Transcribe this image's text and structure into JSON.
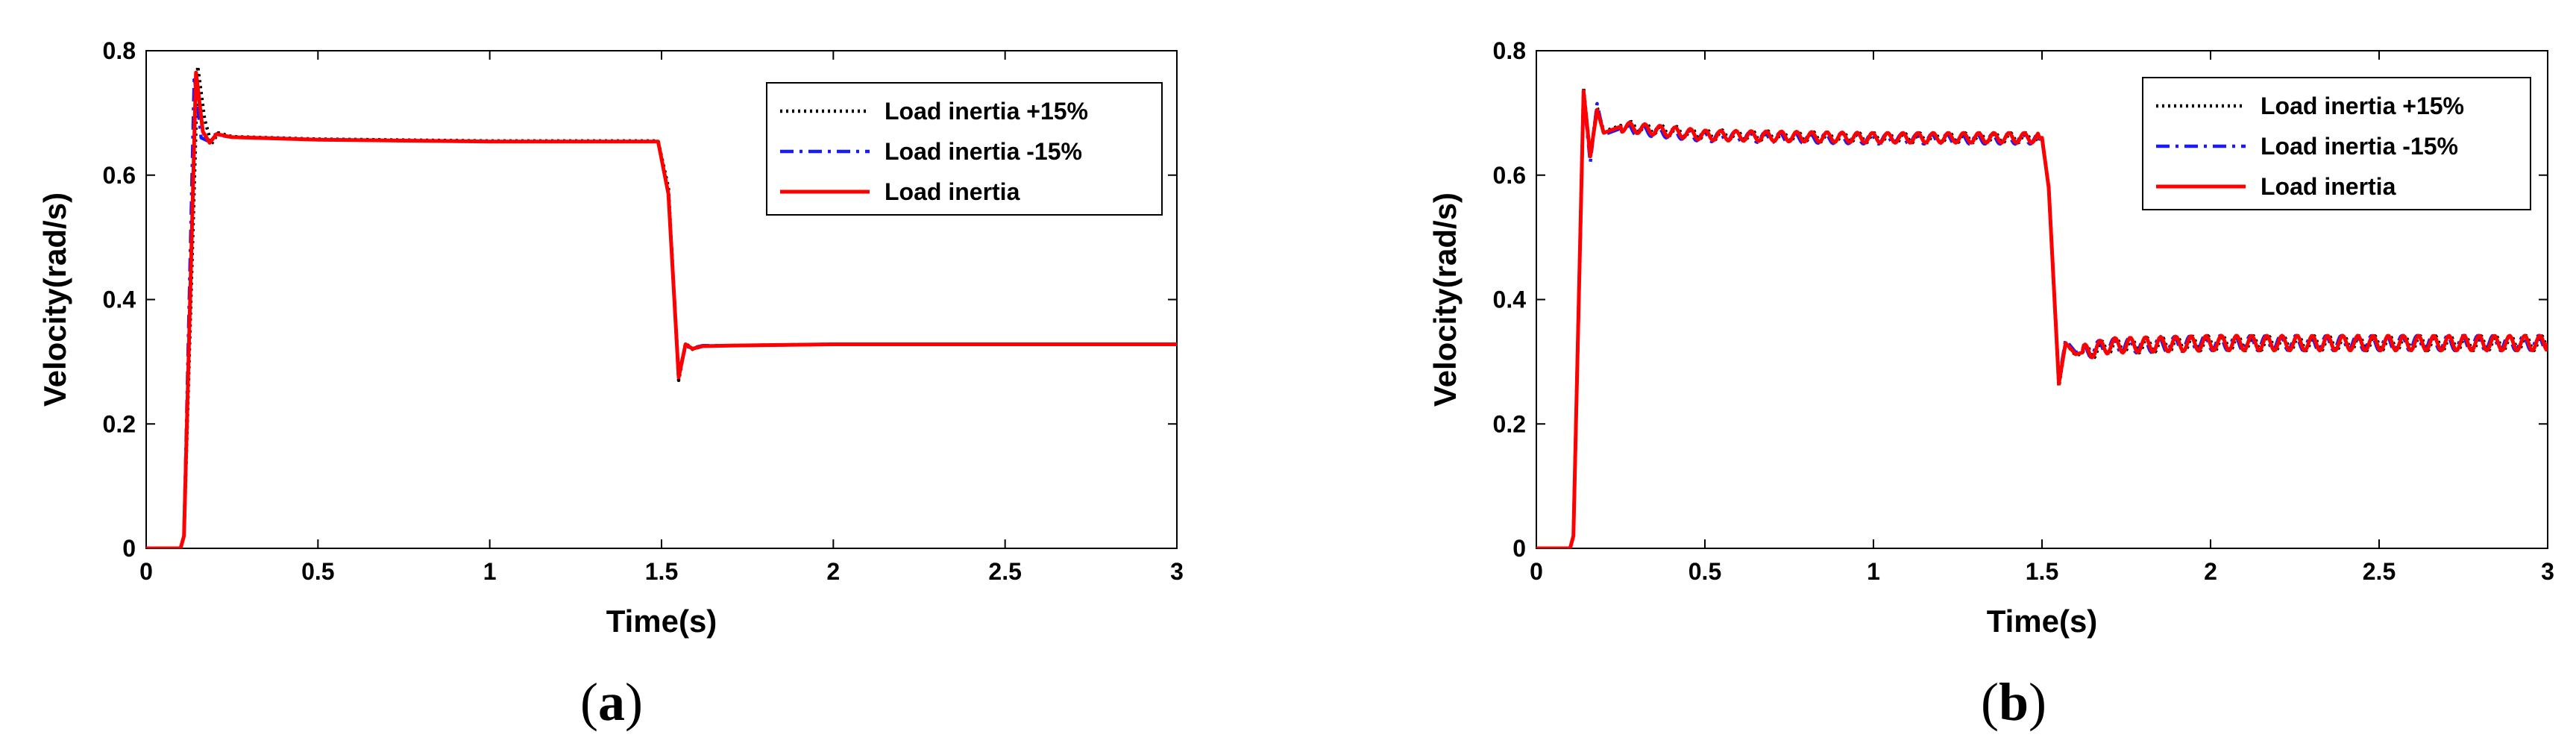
{
  "chart_data": [
    {
      "type": "line",
      "panel_label": "a",
      "xlabel": "Time(s)",
      "ylabel": "Velocity(rad/s)",
      "xlim": [
        0,
        3
      ],
      "ylim": [
        0,
        0.8
      ],
      "xticks": [
        "0",
        "0.5",
        "1",
        "1.5",
        "2",
        "2.5",
        "3"
      ],
      "yticks": [
        "0",
        "0.2",
        "0.4",
        "0.6",
        "0.8"
      ],
      "grid": false,
      "legend_position": "top-right",
      "colors": {
        "load_plus": "#000000",
        "load_minus": "#1a1aff",
        "load": "#ff0000"
      },
      "series": [
        {
          "name": "Load inertia +15%",
          "style": "dotted",
          "color": "#000000",
          "x": [
            0,
            0.1,
            0.11,
            0.15,
            0.17,
            0.19,
            0.21,
            0.25,
            0.5,
            1.0,
            1.49,
            1.52,
            1.55,
            1.57,
            1.59,
            1.62,
            1.7,
            2.0,
            3.0
          ],
          "y": [
            0,
            0,
            0.02,
            0.775,
            0.69,
            0.65,
            0.668,
            0.662,
            0.658,
            0.655,
            0.655,
            0.58,
            0.27,
            0.33,
            0.32,
            0.325,
            0.326,
            0.328,
            0.328
          ]
        },
        {
          "name": "Load inertia -15%",
          "style": "dashdot",
          "color": "#1a1aff",
          "x": [
            0,
            0.1,
            0.11,
            0.14,
            0.16,
            0.18,
            0.2,
            0.25,
            0.5,
            1.0,
            1.49,
            1.52,
            1.55,
            1.57,
            1.59,
            1.62,
            1.7,
            2.0,
            3.0
          ],
          "y": [
            0,
            0,
            0.02,
            0.76,
            0.66,
            0.655,
            0.665,
            0.661,
            0.657,
            0.654,
            0.654,
            0.57,
            0.28,
            0.325,
            0.322,
            0.326,
            0.326,
            0.328,
            0.328
          ]
        },
        {
          "name": "Load inertia",
          "style": "solid",
          "color": "#ff0000",
          "x": [
            0,
            0.1,
            0.11,
            0.145,
            0.165,
            0.185,
            0.205,
            0.25,
            0.5,
            1.0,
            1.49,
            1.52,
            1.55,
            1.57,
            1.59,
            1.62,
            1.7,
            2.0,
            3.0
          ],
          "y": [
            0,
            0,
            0.02,
            0.765,
            0.67,
            0.652,
            0.666,
            0.661,
            0.657,
            0.654,
            0.654,
            0.57,
            0.275,
            0.328,
            0.321,
            0.325,
            0.326,
            0.328,
            0.328
          ]
        }
      ]
    },
    {
      "type": "line",
      "panel_label": "b",
      "xlabel": "Time(s)",
      "ylabel": "Velocity(rad/s)",
      "xlim": [
        0,
        3
      ],
      "ylim": [
        0,
        0.8
      ],
      "xticks": [
        "0",
        "0.5",
        "1",
        "1.5",
        "2",
        "2.5",
        "3"
      ],
      "yticks": [
        "0",
        "0.2",
        "0.4",
        "0.6",
        "0.8"
      ],
      "grid": false,
      "legend_position": "top-right",
      "oscillation": {
        "amplitude_high": 0.008,
        "amplitude_low": 0.012,
        "period": 0.045
      },
      "series": [
        {
          "name": "Load inertia +15%",
          "style": "dotted",
          "color": "#000000",
          "x": [
            0,
            0.1,
            0.11,
            0.14,
            0.16,
            0.18,
            0.2,
            0.25,
            0.5,
            1.0,
            1.5,
            1.52,
            1.55,
            1.57,
            1.6,
            1.7,
            2.0,
            3.0
          ],
          "y": [
            0,
            0,
            0.02,
            0.74,
            0.63,
            0.71,
            0.67,
            0.68,
            0.665,
            0.66,
            0.66,
            0.58,
            0.26,
            0.33,
            0.31,
            0.325,
            0.33,
            0.33
          ],
          "phase": 0.0
        },
        {
          "name": "Load inertia -15%",
          "style": "dashdot",
          "color": "#1a1aff",
          "x": [
            0,
            0.1,
            0.11,
            0.14,
            0.16,
            0.18,
            0.2,
            0.25,
            0.5,
            1.0,
            1.5,
            1.52,
            1.55,
            1.57,
            1.6,
            1.7,
            2.0,
            3.0
          ],
          "y": [
            0,
            0,
            0.02,
            0.73,
            0.62,
            0.715,
            0.665,
            0.675,
            0.662,
            0.658,
            0.658,
            0.58,
            0.27,
            0.335,
            0.315,
            0.325,
            0.33,
            0.33
          ],
          "phase": 1.2
        },
        {
          "name": "Load inertia",
          "style": "solid",
          "color": "#ff0000",
          "x": [
            0,
            0.1,
            0.11,
            0.14,
            0.16,
            0.18,
            0.2,
            0.25,
            0.5,
            1.0,
            1.5,
            1.52,
            1.55,
            1.57,
            1.6,
            1.7,
            2.0,
            3.0
          ],
          "y": [
            0,
            0,
            0.02,
            0.735,
            0.63,
            0.705,
            0.668,
            0.678,
            0.664,
            0.66,
            0.66,
            0.58,
            0.265,
            0.33,
            0.312,
            0.326,
            0.33,
            0.33
          ],
          "phase": 0.6
        }
      ]
    }
  ]
}
